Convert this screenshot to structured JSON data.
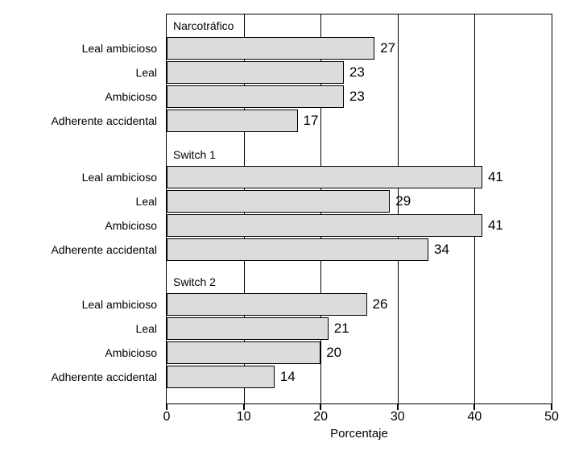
{
  "chart_data": {
    "type": "bar",
    "orientation": "horizontal",
    "xlabel": "Porcentaje",
    "xlim": [
      0,
      50
    ],
    "xticks": [
      0,
      10,
      20,
      30,
      40,
      50
    ],
    "gridlines_at": [
      10,
      20,
      30,
      40
    ],
    "grid": true,
    "legend": "none",
    "bar_fill": "#dcdcdc",
    "bar_border": "#000000",
    "categories": [
      "Leal ambicioso",
      "Leal",
      "Ambicioso",
      "Adherente accidental"
    ],
    "groups": [
      {
        "label": "Narcotráfico",
        "values": [
          27,
          23,
          23,
          17
        ]
      },
      {
        "label": "Switch 1",
        "values": [
          41,
          29,
          41,
          34
        ]
      },
      {
        "label": "Switch 2",
        "values": [
          26,
          21,
          20,
          14
        ]
      }
    ]
  }
}
